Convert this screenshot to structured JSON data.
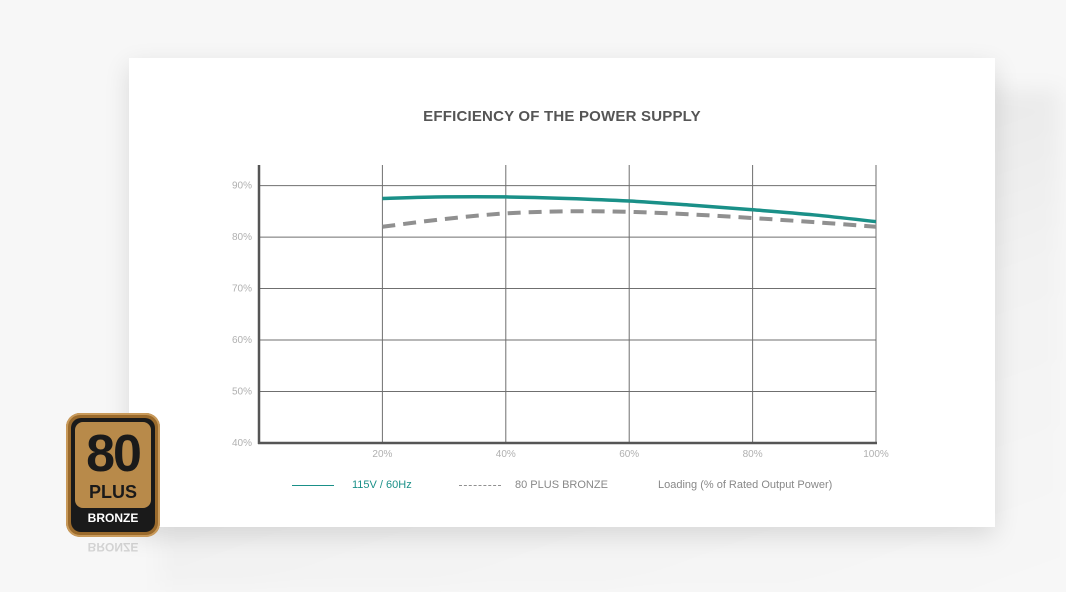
{
  "chart_data": {
    "type": "line",
    "title": "EFFICIENCY OF THE POWER SUPPLY",
    "xlabel": "Loading (% of Rated Output Power)",
    "ylabel": "",
    "x": [
      20,
      40,
      60,
      80,
      100
    ],
    "x_tick_labels": [
      "20%",
      "40%",
      "60%",
      "80%",
      "100%"
    ],
    "y_tick_labels": [
      "40%",
      "50%",
      "60%",
      "70%",
      "80%",
      "90%"
    ],
    "y_ticks": [
      40,
      50,
      60,
      70,
      80,
      90
    ],
    "xlim": [
      0,
      100
    ],
    "ylim": [
      40,
      94
    ],
    "grid": true,
    "legend_position": "bottom",
    "series": [
      {
        "name": "115V / 60Hz",
        "style": "solid",
        "color": "#1a9088",
        "x": [
          20,
          30,
          40,
          50,
          60,
          70,
          80,
          90,
          100
        ],
        "values": [
          87.5,
          87.8,
          87.8,
          87.5,
          87.0,
          86.2,
          85.3,
          84.3,
          83.0
        ]
      },
      {
        "name": "80 PLUS BRONZE",
        "style": "dashed",
        "color": "#909090",
        "x": [
          20,
          30,
          40,
          50,
          60,
          70,
          80,
          90,
          100
        ],
        "values": [
          82.0,
          83.5,
          84.6,
          85.0,
          84.9,
          84.4,
          83.7,
          82.9,
          82.0
        ]
      }
    ]
  },
  "badge": {
    "number": "80",
    "plus": "PLUS",
    "level": "BRONZE",
    "reflection": "BRONZE"
  }
}
